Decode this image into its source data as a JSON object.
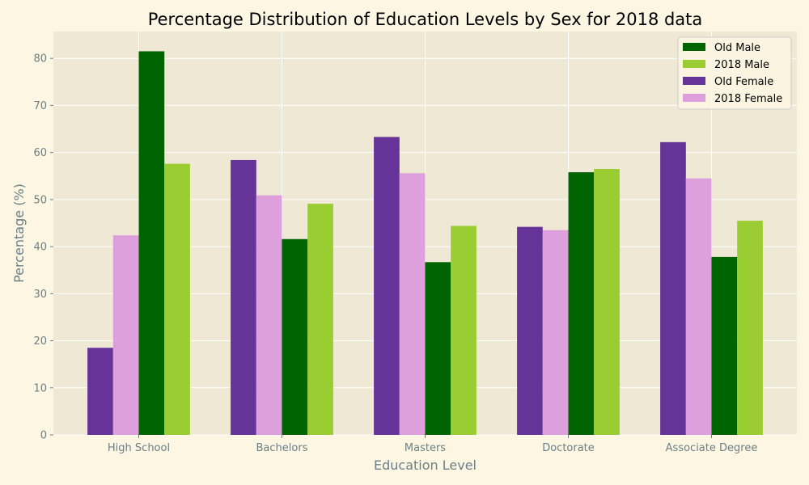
{
  "chart_data": {
    "type": "bar",
    "title": "Percentage Distribution of Education Levels by Sex for 2018 data",
    "xlabel": "Education Level",
    "ylabel": "Percentage (%)",
    "categories": [
      "High School",
      "Bachelors",
      "Masters",
      "Doctorate",
      "Associate Degree"
    ],
    "ylim": [
      0,
      85.7
    ],
    "yticks": [
      0,
      10,
      20,
      30,
      40,
      50,
      60,
      70,
      80
    ],
    "grid": true,
    "legend_position": "top-right",
    "series": [
      {
        "name": "Old Female",
        "color": "#663399",
        "values": [
          18.5,
          58.4,
          63.3,
          44.2,
          62.2
        ]
      },
      {
        "name": "2018 Female",
        "color": "#dda0dd",
        "values": [
          42.4,
          50.9,
          55.6,
          43.5,
          54.5
        ]
      },
      {
        "name": "Old Male",
        "color": "#006400",
        "values": [
          81.5,
          41.6,
          36.7,
          55.8,
          37.8
        ]
      },
      {
        "name": "2018 Male",
        "color": "#9acd32",
        "values": [
          57.6,
          49.1,
          44.4,
          56.5,
          45.5
        ]
      }
    ],
    "legend_order": [
      "Old Male",
      "2018 Male",
      "Old Female",
      "2018 Female"
    ]
  },
  "colors": {
    "figure_background": "#fdf6e3",
    "plot_background": "#eee8d5",
    "grid": "#ffffff"
  }
}
